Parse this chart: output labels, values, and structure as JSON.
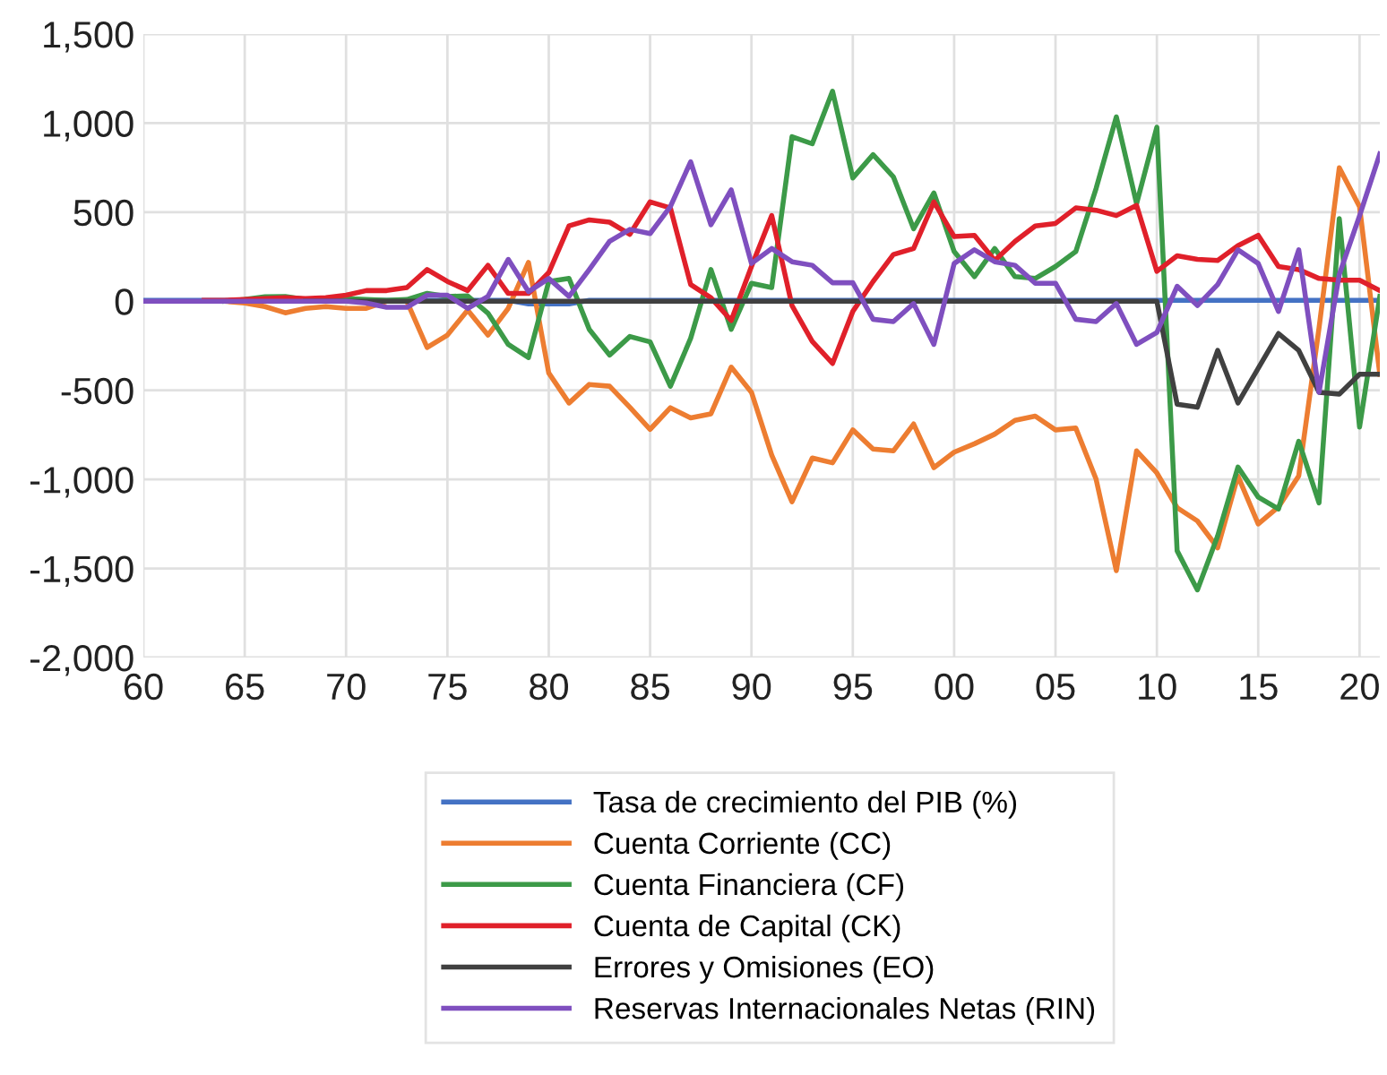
{
  "chart_data": {
    "type": "line",
    "x": [
      1960,
      1961,
      1962,
      1963,
      1964,
      1965,
      1966,
      1967,
      1968,
      1969,
      1970,
      1971,
      1972,
      1973,
      1974,
      1975,
      1976,
      1977,
      1978,
      1979,
      1980,
      1981,
      1982,
      1983,
      1984,
      1985,
      1986,
      1987,
      1988,
      1989,
      1990,
      1991,
      1992,
      1993,
      1994,
      1995,
      1996,
      1997,
      1998,
      1999,
      2000,
      2001,
      2002,
      2003,
      2004,
      2005,
      2006,
      2007,
      2008,
      2009,
      2010,
      2011,
      2012,
      2013,
      2014,
      2015,
      2016,
      2017,
      2018,
      2019,
      2020,
      2021
    ],
    "series": [
      {
        "name": "Tasa de crecimiento del PIB (%)",
        "color": "#4472c4",
        "values": [
          5,
          5,
          5,
          5,
          5,
          5,
          5,
          5,
          5,
          5,
          5,
          5,
          5,
          5,
          5,
          5,
          5,
          5,
          5,
          -15,
          -15,
          -15,
          5,
          5,
          5,
          5,
          5,
          5,
          5,
          5,
          5,
          5,
          5,
          5,
          5,
          5,
          5,
          5,
          5,
          5,
          5,
          5,
          5,
          5,
          5,
          5,
          5,
          5,
          5,
          5,
          5,
          5,
          5,
          5,
          5,
          5,
          5,
          5,
          5,
          5,
          5,
          5
        ]
      },
      {
        "name": "Cuenta Corriente (CC)",
        "color": "#ed7d31",
        "values": [
          null,
          null,
          null,
          0,
          0,
          -10,
          -30,
          -65,
          -40,
          -30,
          -40,
          -40,
          0,
          0,
          -260,
          -190,
          -50,
          -190,
          -40,
          218,
          -403,
          -571,
          -467,
          -477,
          -595,
          -719,
          -598,
          -655,
          -632,
          -370,
          -511,
          -864,
          -1126,
          -880,
          -907,
          -722,
          -830,
          -840,
          -689,
          -934,
          -847,
          -800,
          -746,
          -669,
          -645,
          -722,
          -712,
          -998,
          -1512,
          -840,
          -964,
          -1159,
          -1233,
          -1384,
          -981,
          -1250,
          -1155,
          -980,
          -150,
          749,
          531,
          -410
        ]
      },
      {
        "name": "Cuenta Financiera (CF)",
        "color": "#3c9a48",
        "values": [
          null,
          null,
          null,
          null,
          0,
          10,
          25,
          27,
          10,
          10,
          15,
          10,
          5,
          10,
          44,
          27,
          30,
          -67,
          -242,
          -316,
          111,
          128,
          -158,
          -302,
          -198,
          -228,
          -477,
          -208,
          178,
          -158,
          101,
          77,
          924,
          884,
          1179,
          692,
          823,
          699,
          407,
          608,
          279,
          138,
          296,
          138,
          128,
          195,
          279,
          632,
          1035,
          548,
          977,
          -1401,
          -1620,
          -1317,
          -931,
          -1099,
          -1166,
          -786,
          -1132,
          464,
          -706,
          27
        ]
      },
      {
        "name": "Cuenta de Capital (CK)",
        "color": "#e0202a",
        "values": [
          null,
          null,
          null,
          5,
          5,
          10,
          15,
          20,
          15,
          20,
          34,
          60,
          60,
          77,
          178,
          111,
          60,
          202,
          44,
          44,
          161,
          423,
          457,
          444,
          376,
          558,
          524,
          94,
          20,
          -108,
          195,
          481,
          -24,
          -225,
          -349,
          -57,
          111,
          262,
          296,
          558,
          363,
          370,
          229,
          336,
          423,
          437,
          524,
          511,
          481,
          538,
          168,
          255,
          235,
          229,
          312,
          370,
          195,
          178,
          128,
          118,
          118,
          60
        ]
      },
      {
        "name": "Errores y Omisiones (EO)",
        "color": "#404040",
        "values": [
          null,
          null,
          null,
          null,
          null,
          null,
          null,
          null,
          0,
          0,
          0,
          0,
          0,
          0,
          0,
          0,
          0,
          0,
          0,
          0,
          0,
          0,
          0,
          0,
          0,
          0,
          0,
          0,
          0,
          0,
          0,
          0,
          0,
          0,
          0,
          0,
          0,
          0,
          0,
          0,
          0,
          0,
          0,
          0,
          0,
          0,
          0,
          0,
          0,
          0,
          0,
          -578,
          -595,
          -276,
          -571,
          -376,
          -181,
          -276,
          -511,
          -521,
          -410,
          -410
        ]
      },
      {
        "name": "Reservas Internacionales Netas (RIN)",
        "color": "#7f4fbf",
        "values": [
          0,
          0,
          0,
          0,
          0,
          0,
          0,
          0,
          0,
          0,
          0,
          -10,
          -34,
          -34,
          34,
          34,
          -40,
          27,
          235,
          54,
          128,
          27,
          178,
          336,
          403,
          380,
          531,
          783,
          430,
          625,
          212,
          296,
          222,
          202,
          104,
          104,
          -101,
          -114,
          -13,
          -242,
          212,
          289,
          222,
          202,
          101,
          101,
          -101,
          -114,
          -13,
          -242,
          -175,
          84,
          -24,
          94,
          289,
          212,
          -57,
          289,
          -511,
          150,
          480,
          827
        ]
      }
    ],
    "xlim": [
      1960,
      2021
    ],
    "xticks": [
      {
        "value": 1960,
        "label": "60"
      },
      {
        "value": 1965,
        "label": "65"
      },
      {
        "value": 1970,
        "label": "70"
      },
      {
        "value": 1975,
        "label": "75"
      },
      {
        "value": 1980,
        "label": "80"
      },
      {
        "value": 1985,
        "label": "85"
      },
      {
        "value": 1990,
        "label": "90"
      },
      {
        "value": 1995,
        "label": "95"
      },
      {
        "value": 2000,
        "label": "00"
      },
      {
        "value": 2005,
        "label": "05"
      },
      {
        "value": 2010,
        "label": "10"
      },
      {
        "value": 2015,
        "label": "15"
      },
      {
        "value": 2020,
        "label": "20"
      }
    ],
    "ylim": [
      -2000,
      1500
    ],
    "yticks": [
      {
        "value": -2000,
        "label": "-2,000"
      },
      {
        "value": -1500,
        "label": "-1,500"
      },
      {
        "value": -1000,
        "label": "-1,000"
      },
      {
        "value": -500,
        "label": "-500"
      },
      0,
      500,
      {
        "value": 1000,
        "label": "1,000"
      },
      {
        "value": 1500,
        "label": "1,500"
      }
    ],
    "grid": true,
    "legend": "bottom",
    "marker": "none",
    "line_style": "solid"
  }
}
